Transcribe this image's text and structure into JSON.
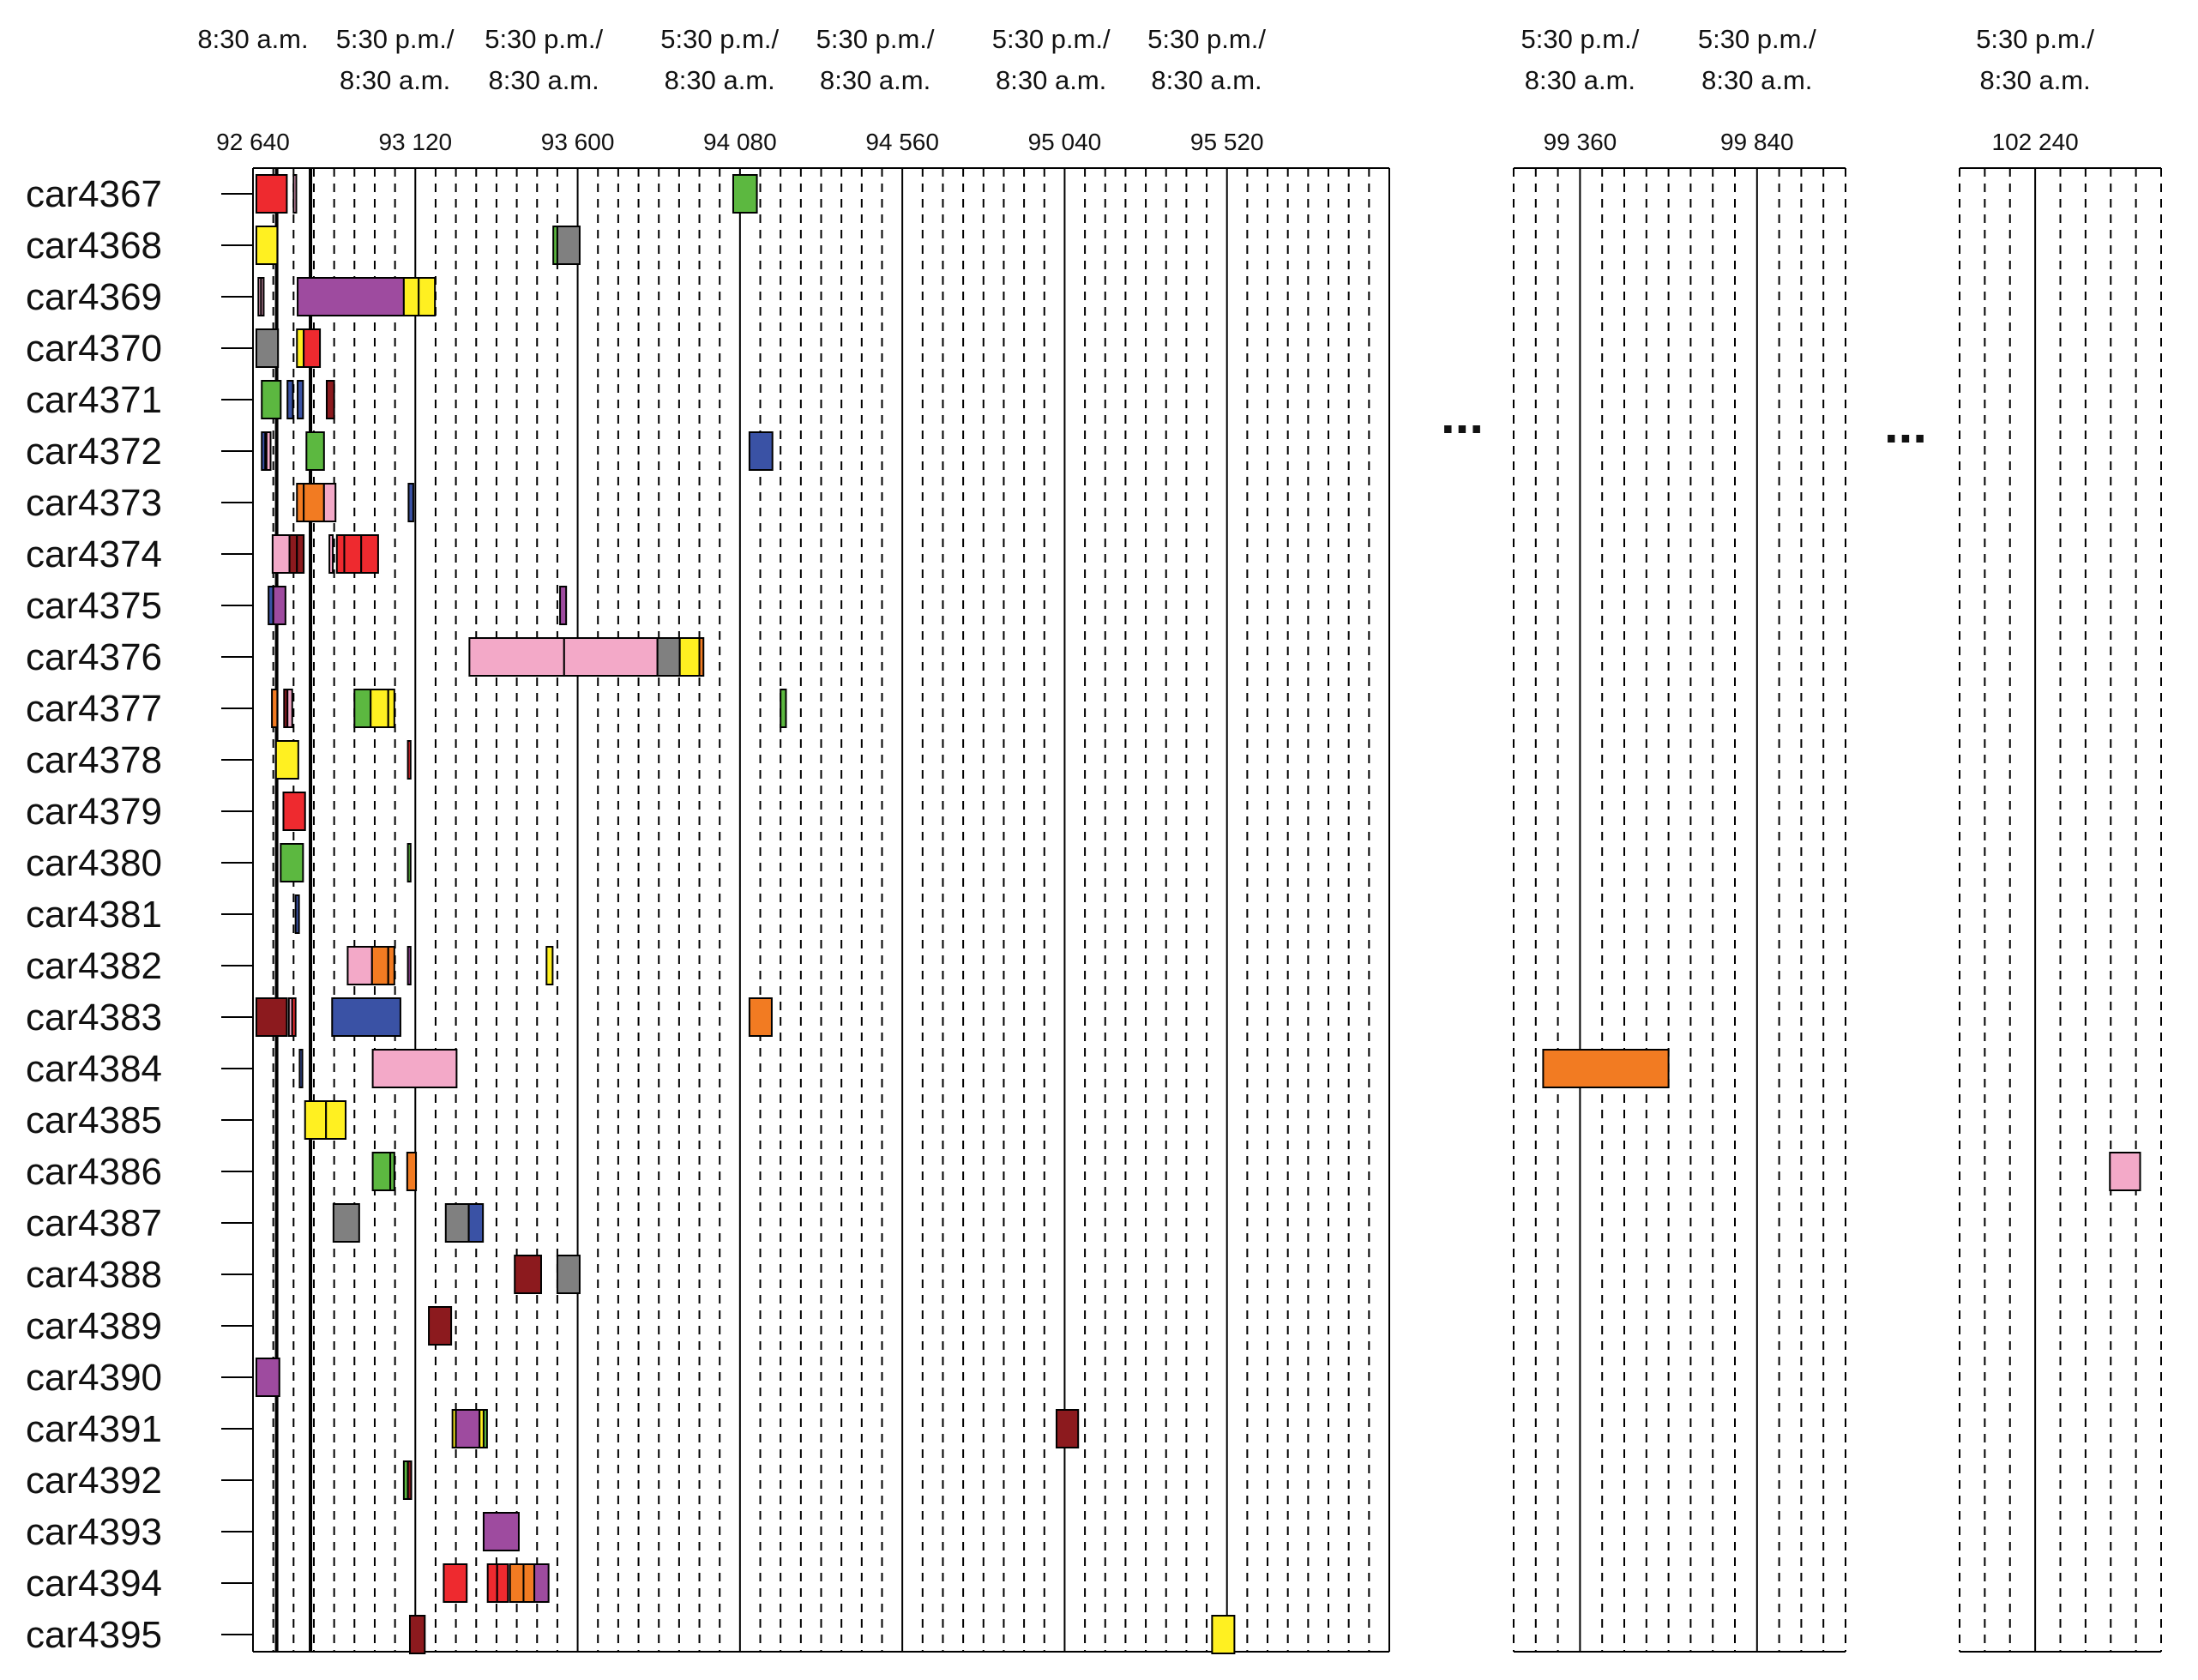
{
  "chart_data": {
    "type": "gantt",
    "minutes_per_gridline": 60,
    "colors": {
      "red": "#ee2a2f",
      "pink": "#f3a9c8",
      "yellow": "#fff021",
      "gray": "#808080",
      "green": "#5cb840",
      "blue": "#3a52a5",
      "purple": "#9e4b9f",
      "orange": "#f27b22",
      "maroon": "#8c1a1e"
    },
    "segments": [
      {
        "start": 92640,
        "end": 96000,
        "tick_step": 480,
        "ticks": [
          "92 640",
          "93 120",
          "93 600",
          "94 080",
          "94 560",
          "95 040",
          "95 520"
        ],
        "time_labels": [
          {
            "at": 92640,
            "line1": "8:30 a.m.",
            "line2": ""
          },
          {
            "at": 93060,
            "line1": "5:30 p.m./",
            "line2": "8:30 a.m."
          },
          {
            "at": 93500,
            "line1": "5:30 p.m./",
            "line2": "8:30 a.m."
          },
          {
            "at": 94020,
            "line1": "5:30 p.m./",
            "line2": "8:30 a.m."
          },
          {
            "at": 94480,
            "line1": "5:30 p.m./",
            "line2": "8:30 a.m."
          },
          {
            "at": 95000,
            "line1": "5:30 p.m./",
            "line2": "8:30 a.m."
          },
          {
            "at": 95460,
            "line1": "5:30 p.m./",
            "line2": "8:30 a.m."
          }
        ]
      },
      {
        "start": 99180,
        "end": 100080,
        "tick_step": 480,
        "ticks": [
          "99 360",
          "99 840"
        ],
        "time_labels": [
          {
            "at": 99360,
            "line1": "5:30 p.m./",
            "line2": "8:30 a.m."
          },
          {
            "at": 99840,
            "line1": "5:30 p.m./",
            "line2": "8:30 a.m."
          }
        ]
      },
      {
        "start": 102060,
        "end": 102540,
        "tick_step": 480,
        "ticks": [
          "102 240"
        ],
        "time_labels": [
          {
            "at": 102240,
            "line1": "5:30 p.m./",
            "line2": "8:30 a.m."
          }
        ]
      }
    ],
    "gap_marker": "...",
    "rows": [
      {
        "car": "car4367",
        "tasks": [
          {
            "start": 92650,
            "end": 92740,
            "color": "red"
          },
          {
            "start": 92760,
            "end": 92768,
            "color": "pink"
          },
          {
            "start": 94060,
            "end": 94130,
            "color": "green"
          }
        ]
      },
      {
        "car": "car4368",
        "tasks": [
          {
            "start": 92650,
            "end": 92712,
            "color": "yellow"
          },
          {
            "start": 93528,
            "end": 93540,
            "color": "green"
          },
          {
            "start": 93540,
            "end": 93606,
            "color": "gray"
          }
        ]
      },
      {
        "car": "car4369",
        "tasks": [
          {
            "start": 92656,
            "end": 92662,
            "color": "pink"
          },
          {
            "start": 92664,
            "end": 92670,
            "color": "pink"
          },
          {
            "start": 92772,
            "end": 93086,
            "color": "purple"
          },
          {
            "start": 93086,
            "end": 93130,
            "color": "yellow"
          },
          {
            "start": 93130,
            "end": 93178,
            "color": "yellow"
          }
        ]
      },
      {
        "car": "car4370",
        "tasks": [
          {
            "start": 92650,
            "end": 92714,
            "color": "gray"
          },
          {
            "start": 92770,
            "end": 92790,
            "color": "yellow"
          },
          {
            "start": 92790,
            "end": 92838,
            "color": "red"
          }
        ]
      },
      {
        "car": "car4371",
        "tasks": [
          {
            "start": 92666,
            "end": 92722,
            "color": "green"
          },
          {
            "start": 92742,
            "end": 92758,
            "color": "blue"
          },
          {
            "start": 92772,
            "end": 92788,
            "color": "blue"
          },
          {
            "start": 92858,
            "end": 92880,
            "color": "maroon"
          }
        ]
      },
      {
        "car": "car4372",
        "tasks": [
          {
            "start": 92666,
            "end": 92676,
            "color": "blue"
          },
          {
            "start": 92680,
            "end": 92692,
            "color": "pink"
          },
          {
            "start": 92798,
            "end": 92850,
            "color": "green"
          },
          {
            "start": 94108,
            "end": 94176,
            "color": "blue"
          }
        ]
      },
      {
        "car": "car4373",
        "tasks": [
          {
            "start": 92770,
            "end": 92790,
            "color": "orange"
          },
          {
            "start": 92790,
            "end": 92850,
            "color": "orange"
          },
          {
            "start": 92850,
            "end": 92884,
            "color": "pink"
          },
          {
            "start": 93100,
            "end": 93114,
            "color": "blue"
          }
        ]
      },
      {
        "car": "car4374",
        "tasks": [
          {
            "start": 92698,
            "end": 92748,
            "color": "pink"
          },
          {
            "start": 92748,
            "end": 92770,
            "color": "maroon"
          },
          {
            "start": 92770,
            "end": 92790,
            "color": "maroon"
          },
          {
            "start": 92866,
            "end": 92876,
            "color": "pink"
          },
          {
            "start": 92888,
            "end": 92910,
            "color": "red"
          },
          {
            "start": 92910,
            "end": 92960,
            "color": "red"
          },
          {
            "start": 92960,
            "end": 93010,
            "color": "red"
          }
        ]
      },
      {
        "car": "car4375",
        "tasks": [
          {
            "start": 92686,
            "end": 92700,
            "color": "blue"
          },
          {
            "start": 92700,
            "end": 92736,
            "color": "purple"
          },
          {
            "start": 93548,
            "end": 93566,
            "color": "purple"
          }
        ]
      },
      {
        "car": "car4376",
        "tasks": [
          {
            "start": 93280,
            "end": 93560,
            "color": "pink"
          },
          {
            "start": 93560,
            "end": 93836,
            "color": "pink"
          },
          {
            "start": 93836,
            "end": 93902,
            "color": "gray"
          },
          {
            "start": 93902,
            "end": 93960,
            "color": "yellow"
          },
          {
            "start": 93960,
            "end": 93972,
            "color": "orange"
          }
        ]
      },
      {
        "car": "car4377",
        "tasks": [
          {
            "start": 92696,
            "end": 92712,
            "color": "orange"
          },
          {
            "start": 92732,
            "end": 92742,
            "color": "maroon"
          },
          {
            "start": 92742,
            "end": 92756,
            "color": "pink"
          },
          {
            "start": 92940,
            "end": 92988,
            "color": "green"
          },
          {
            "start": 92988,
            "end": 93040,
            "color": "yellow"
          },
          {
            "start": 93040,
            "end": 93058,
            "color": "yellow"
          },
          {
            "start": 94200,
            "end": 94216,
            "color": "green"
          }
        ]
      },
      {
        "car": "car4378",
        "tasks": [
          {
            "start": 92708,
            "end": 92774,
            "color": "yellow"
          },
          {
            "start": 93098,
            "end": 93106,
            "color": "red"
          }
        ]
      },
      {
        "car": "car4379",
        "tasks": [
          {
            "start": 92730,
            "end": 92794,
            "color": "red"
          }
        ]
      },
      {
        "car": "car4380",
        "tasks": [
          {
            "start": 92722,
            "end": 92788,
            "color": "green"
          },
          {
            "start": 93098,
            "end": 93106,
            "color": "green"
          }
        ]
      },
      {
        "car": "car4381",
        "tasks": [
          {
            "start": 92766,
            "end": 92776,
            "color": "blue"
          }
        ]
      },
      {
        "car": "car4382",
        "tasks": [
          {
            "start": 92920,
            "end": 92992,
            "color": "pink"
          },
          {
            "start": 92992,
            "end": 93040,
            "color": "orange"
          },
          {
            "start": 93040,
            "end": 93058,
            "color": "orange"
          },
          {
            "start": 93098,
            "end": 93106,
            "color": "purple"
          },
          {
            "start": 93508,
            "end": 93526,
            "color": "yellow"
          }
        ]
      },
      {
        "car": "car4383",
        "tasks": [
          {
            "start": 92650,
            "end": 92740,
            "color": "maroon"
          },
          {
            "start": 92746,
            "end": 92756,
            "color": "pink"
          },
          {
            "start": 92756,
            "end": 92766,
            "color": "red"
          },
          {
            "start": 92874,
            "end": 93076,
            "color": "blue"
          },
          {
            "start": 94108,
            "end": 94174,
            "color": "orange"
          }
        ]
      },
      {
        "car": "car4384",
        "tasks": [
          {
            "start": 92778,
            "end": 92786,
            "color": "blue"
          },
          {
            "start": 92994,
            "end": 93242,
            "color": "pink"
          },
          {
            "start": 99260,
            "end": 99600,
            "color": "orange"
          }
        ]
      },
      {
        "car": "car4385",
        "tasks": [
          {
            "start": 92794,
            "end": 92856,
            "color": "yellow"
          },
          {
            "start": 92856,
            "end": 92914,
            "color": "yellow"
          }
        ]
      },
      {
        "car": "car4386",
        "tasks": [
          {
            "start": 92994,
            "end": 93046,
            "color": "green"
          },
          {
            "start": 93046,
            "end": 93058,
            "color": "green"
          },
          {
            "start": 93096,
            "end": 93122,
            "color": "orange"
          },
          {
            "start": 102418,
            "end": 102490,
            "color": "pink"
          }
        ]
      },
      {
        "car": "car4387",
        "tasks": [
          {
            "start": 92878,
            "end": 92954,
            "color": "gray"
          },
          {
            "start": 93210,
            "end": 93278,
            "color": "gray"
          },
          {
            "start": 93278,
            "end": 93320,
            "color": "blue"
          }
        ]
      },
      {
        "car": "car4388",
        "tasks": [
          {
            "start": 93414,
            "end": 93492,
            "color": "maroon"
          },
          {
            "start": 93540,
            "end": 93606,
            "color": "gray"
          }
        ]
      },
      {
        "car": "car4389",
        "tasks": [
          {
            "start": 93160,
            "end": 93226,
            "color": "maroon"
          }
        ]
      },
      {
        "car": "car4390",
        "tasks": [
          {
            "start": 92650,
            "end": 92718,
            "color": "purple"
          }
        ]
      },
      {
        "car": "car4391",
        "tasks": [
          {
            "start": 93230,
            "end": 93240,
            "color": "yellow"
          },
          {
            "start": 93240,
            "end": 93310,
            "color": "purple"
          },
          {
            "start": 93310,
            "end": 93322,
            "color": "yellow"
          },
          {
            "start": 93322,
            "end": 93332,
            "color": "green"
          },
          {
            "start": 95016,
            "end": 95080,
            "color": "maroon"
          }
        ]
      },
      {
        "car": "car4392",
        "tasks": [
          {
            "start": 93086,
            "end": 93098,
            "color": "green"
          },
          {
            "start": 93098,
            "end": 93108,
            "color": "maroon"
          }
        ]
      },
      {
        "car": "car4393",
        "tasks": [
          {
            "start": 93322,
            "end": 93426,
            "color": "purple"
          }
        ]
      },
      {
        "car": "car4394",
        "tasks": [
          {
            "start": 93204,
            "end": 93272,
            "color": "red"
          },
          {
            "start": 93334,
            "end": 93362,
            "color": "red"
          },
          {
            "start": 93362,
            "end": 93394,
            "color": "red"
          },
          {
            "start": 93400,
            "end": 93440,
            "color": "orange"
          },
          {
            "start": 93440,
            "end": 93472,
            "color": "orange"
          },
          {
            "start": 93472,
            "end": 93514,
            "color": "purple"
          }
        ]
      },
      {
        "car": "car4395",
        "tasks": [
          {
            "start": 93104,
            "end": 93148,
            "color": "maroon"
          },
          {
            "start": 95476,
            "end": 95542,
            "color": "yellow"
          }
        ]
      }
    ]
  }
}
